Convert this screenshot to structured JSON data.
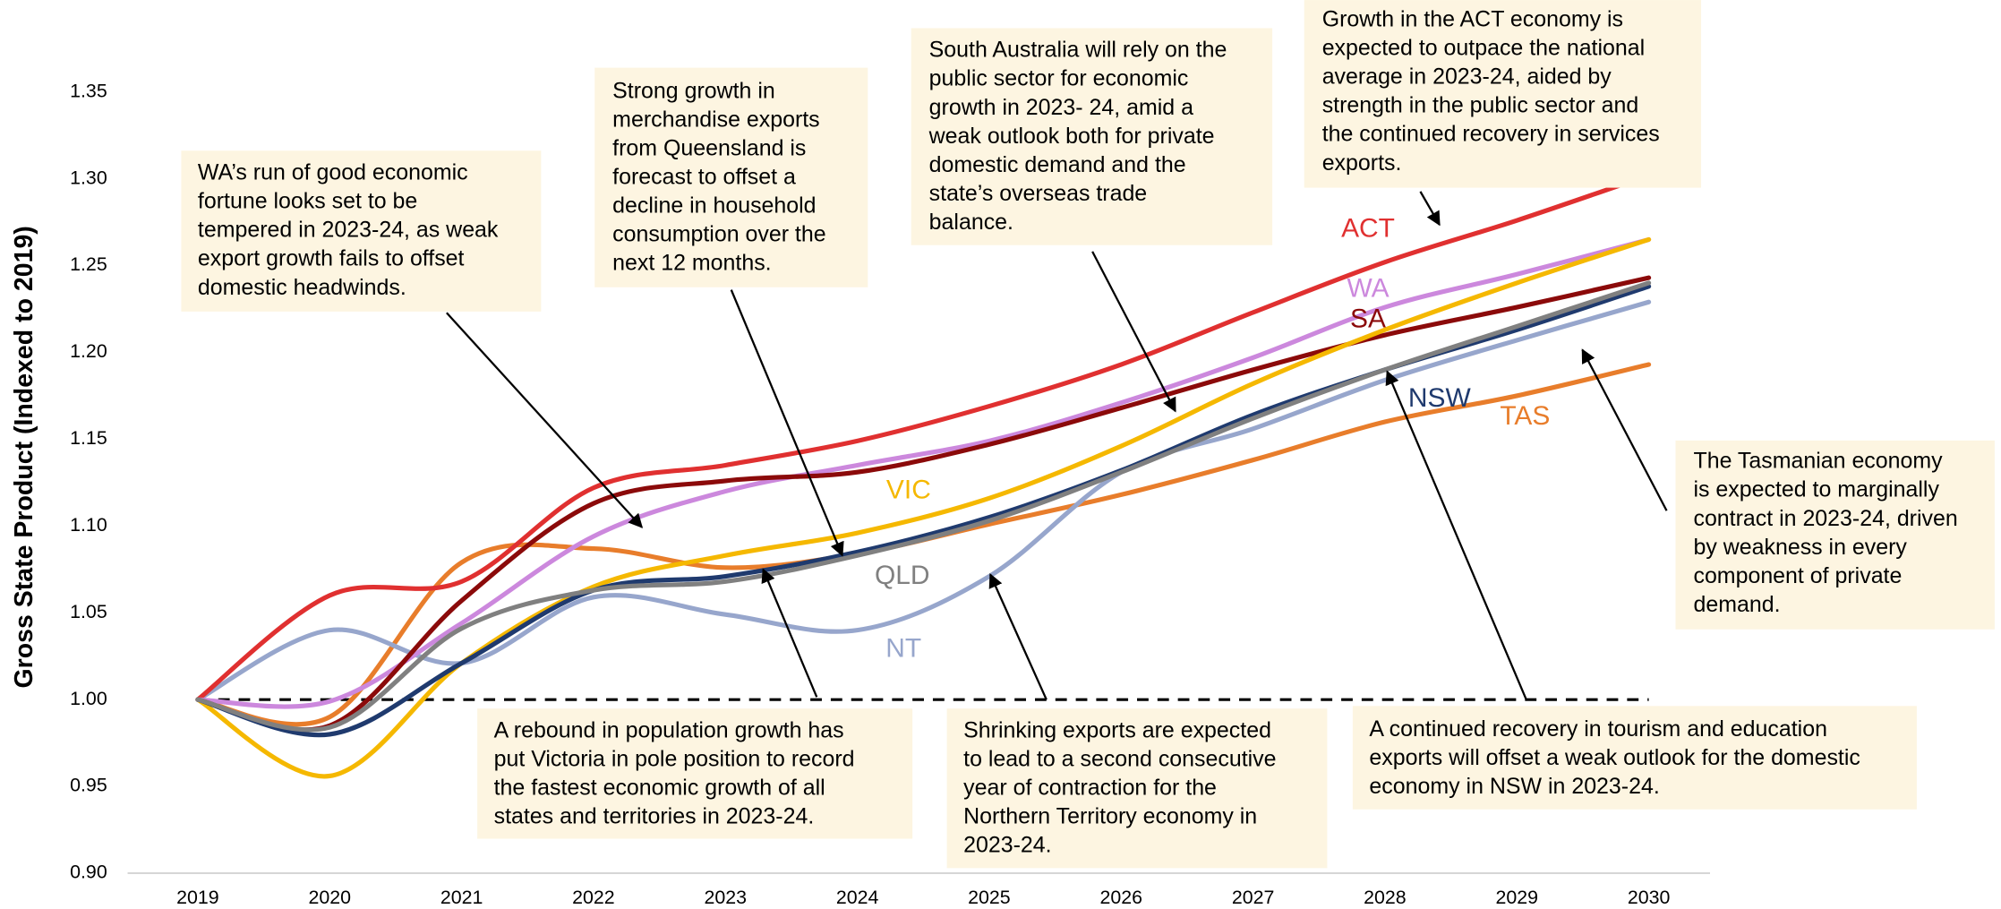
{
  "chart_data": {
    "type": "line",
    "y_label": "Gross State Product (Indexed to 2019)",
    "x": [
      2019,
      2020,
      2021,
      2022,
      2023,
      2024,
      2025,
      2026,
      2027,
      2028,
      2029,
      2030
    ],
    "xlim": [
      2019,
      2030
    ],
    "xticks": [
      2019,
      2020,
      2021,
      2022,
      2023,
      2024,
      2025,
      2026,
      2027,
      2028,
      2029,
      2030
    ],
    "ylim": [
      0.9,
      1.35
    ],
    "yticks": [
      {
        "value": 0.9,
        "label": "0.90"
      },
      {
        "value": 0.95,
        "label": "0.95"
      },
      {
        "value": 1.0,
        "label": "1.00"
      },
      {
        "value": 1.05,
        "label": "1.05"
      },
      {
        "value": 1.1,
        "label": "1.10"
      },
      {
        "value": 1.15,
        "label": "1.15"
      },
      {
        "value": 1.2,
        "label": "1.20"
      },
      {
        "value": 1.25,
        "label": "1.25"
      },
      {
        "value": 1.3,
        "label": "1.30"
      },
      {
        "value": 1.35,
        "label": "1.35"
      }
    ],
    "reference_line": 1.0,
    "grid": false,
    "series": [
      {
        "name": "TAS",
        "color": "#e87d2b",
        "values": [
          1.0,
          0.99,
          1.079,
          1.087,
          1.076,
          1.084,
          1.101,
          1.118,
          1.138,
          1.16,
          1.175,
          1.193
        ]
      },
      {
        "name": "NT",
        "color": "#97a6cc",
        "values": [
          1.0,
          1.04,
          1.021,
          1.059,
          1.049,
          1.04,
          1.071,
          1.131,
          1.156,
          1.184,
          1.207,
          1.229
        ]
      },
      {
        "name": "ACT",
        "color": "#e03030",
        "values": [
          1.0,
          1.06,
          1.068,
          1.122,
          1.135,
          1.149,
          1.169,
          1.193,
          1.223,
          1.252,
          1.276,
          1.302
        ]
      },
      {
        "name": "WA",
        "color": "#cc88dd",
        "values": [
          1.0,
          0.999,
          1.044,
          1.094,
          1.12,
          1.135,
          1.149,
          1.171,
          1.197,
          1.226,
          1.245,
          1.265
        ]
      },
      {
        "name": "SA",
        "color": "#8b0a0a",
        "values": [
          1.0,
          0.985,
          1.057,
          1.113,
          1.126,
          1.131,
          1.147,
          1.168,
          1.19,
          1.21,
          1.226,
          1.243
        ]
      },
      {
        "name": "VIC",
        "color": "#f5b800",
        "values": [
          1.0,
          0.956,
          1.021,
          1.065,
          1.083,
          1.096,
          1.116,
          1.146,
          1.182,
          1.213,
          1.24,
          1.265
        ]
      },
      {
        "name": "NSW",
        "color": "#1f3a6e",
        "values": [
          1.0,
          0.98,
          1.021,
          1.063,
          1.071,
          1.085,
          1.105,
          1.132,
          1.164,
          1.19,
          1.213,
          1.238
        ]
      },
      {
        "name": "QLD",
        "color": "#808080",
        "values": [
          1.0,
          0.984,
          1.041,
          1.063,
          1.068,
          1.083,
          1.103,
          1.131,
          1.162,
          1.19,
          1.215,
          1.24
        ]
      }
    ],
    "annotations": [
      [
        "WA’s run of good economic",
        "fortune looks set to be",
        "tempered in 2023-24, as weak",
        "export growth fails to offset",
        "domestic headwinds."
      ],
      [
        "Strong growth in",
        "merchandise exports",
        "from Queensland is",
        "forecast to offset a",
        "decline in household",
        "consumption over the",
        "next 12 months."
      ],
      [
        "South Australia will rely on the",
        "public sector for economic",
        "growth in 2023- 24, amid a",
        "weak outlook both for private",
        "domestic demand and the",
        "state’s overseas trade",
        "balance."
      ],
      [
        "Growth in the ACT economy is",
        "expected to outpace the national",
        "average in 2023-24, aided by",
        "strength in the public sector and",
        "the continued recovery in services",
        "exports."
      ],
      [
        "The Tasmanian economy",
        "is expected to marginally",
        "contract in 2023-24, driven",
        "by weakness in every",
        "component of private",
        "demand."
      ],
      [
        "A rebound in population growth has",
        "put Victoria in pole position to record",
        "the fastest economic growth of all",
        "states and territories in 2023-24."
      ],
      [
        "Shrinking exports are expected",
        "to lead to a second consecutive",
        "year of contraction for the",
        "Northern Territory economy in",
        "2023-24."
      ],
      [
        "A continued recovery in tourism and education",
        "exports will offset a weak outlook for the domestic",
        "economy in NSW in 2023-24."
      ]
    ]
  }
}
